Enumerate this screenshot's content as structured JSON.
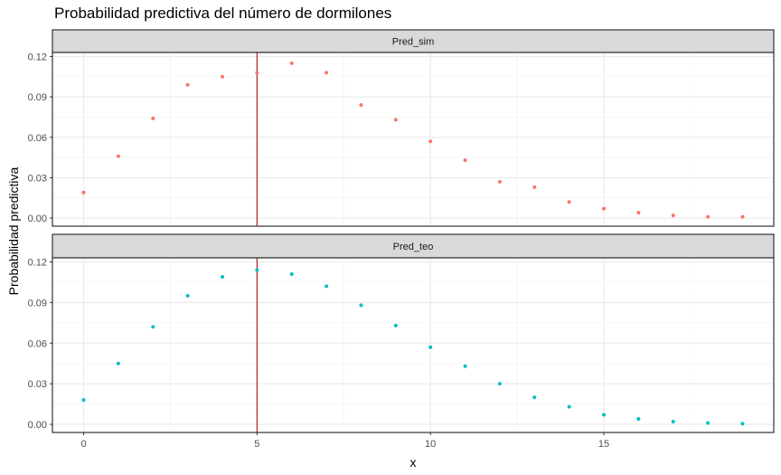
{
  "chart_data": {
    "type": "scatter",
    "title": "Probabilidad predictiva del número de dormilones",
    "xlabel": "x",
    "ylabel": "Probabilidad predictiva",
    "xlim": [
      -0.9,
      19.9
    ],
    "ylim": [
      -0.006,
      0.123
    ],
    "x_ticks": [
      0,
      5,
      10,
      15
    ],
    "y_ticks": [
      0.0,
      0.03,
      0.06,
      0.09,
      0.12
    ],
    "y_tick_labels": [
      "0.00",
      "0.03",
      "0.06",
      "0.09",
      "0.12"
    ],
    "grid": true,
    "vline": 5,
    "vline_color": "#b22222",
    "facets": [
      {
        "name": "Pred_sim",
        "color": "#f8766d",
        "x": [
          0,
          1,
          2,
          3,
          4,
          5,
          6,
          7,
          8,
          9,
          10,
          11,
          12,
          13,
          14,
          15,
          16,
          17,
          18,
          19
        ],
        "y": [
          0.019,
          0.046,
          0.074,
          0.099,
          0.105,
          0.108,
          0.115,
          0.108,
          0.084,
          0.073,
          0.057,
          0.043,
          0.027,
          0.023,
          0.012,
          0.007,
          0.004,
          0.002,
          0.001,
          0.001
        ]
      },
      {
        "name": "Pred_teo",
        "color": "#00bfc4",
        "x": [
          0,
          1,
          2,
          3,
          4,
          5,
          6,
          7,
          8,
          9,
          10,
          11,
          12,
          13,
          14,
          15,
          16,
          17,
          18,
          19
        ],
        "y": [
          0.018,
          0.045,
          0.072,
          0.095,
          0.109,
          0.114,
          0.111,
          0.102,
          0.088,
          0.073,
          0.057,
          0.043,
          0.03,
          0.02,
          0.013,
          0.007,
          0.004,
          0.002,
          0.001,
          0.0005
        ]
      }
    ]
  }
}
